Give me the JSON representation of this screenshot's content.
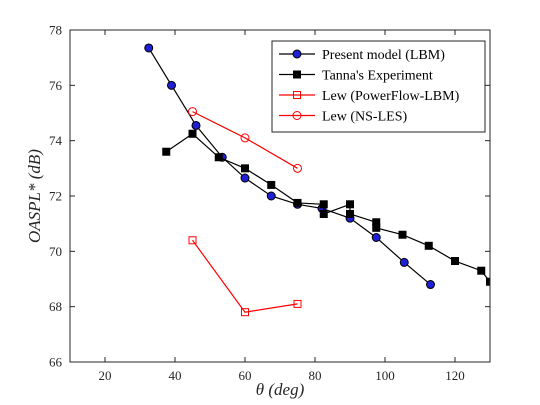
{
  "chart_data": {
    "type": "line",
    "xlabel": "θ (deg)",
    "ylabel": "OASPL* (dB)",
    "xlim": [
      10,
      130
    ],
    "ylim": [
      66,
      78
    ],
    "xticks": [
      20,
      40,
      60,
      80,
      100,
      120
    ],
    "yticks": [
      66,
      68,
      70,
      72,
      74,
      76,
      78
    ],
    "legend_position": "top-right",
    "grid": false,
    "series": [
      {
        "name": "Present model (LBM)",
        "color": "#000000",
        "marker": "circle",
        "marker_fill": "#1f1fd6",
        "x": [
          32.5,
          39,
          46,
          53.5,
          60,
          67.5,
          75,
          82,
          90,
          97.5,
          105.5,
          113
        ],
        "y": [
          77.35,
          76.0,
          74.55,
          73.4,
          72.65,
          72.0,
          71.7,
          71.55,
          71.2,
          70.5,
          69.6,
          68.8
        ]
      },
      {
        "name": "Tanna's Experiment",
        "color": "#000000",
        "marker": "square",
        "marker_fill": "#000000",
        "x": [
          37.5,
          45,
          52.5,
          60,
          67.5,
          75,
          82.5,
          82.5,
          90,
          90,
          97.5,
          97.5,
          105,
          112.5,
          120,
          127.5,
          130
        ],
        "y": [
          73.6,
          74.25,
          73.4,
          73.0,
          72.4,
          71.75,
          71.7,
          71.35,
          71.7,
          71.35,
          71.05,
          70.85,
          70.6,
          70.2,
          69.65,
          69.3,
          68.9
        ]
      },
      {
        "name": "Lew (PowerFlow-LBM)",
        "color": "#ff0000",
        "marker": "square-open",
        "marker_fill": "none",
        "x": [
          45,
          60,
          75
        ],
        "y": [
          70.4,
          67.8,
          68.1
        ]
      },
      {
        "name": "Lew (NS-LES)",
        "color": "#ff0000",
        "marker": "circle-open",
        "marker_fill": "none",
        "x": [
          45,
          60,
          75
        ],
        "y": [
          75.05,
          74.1,
          73.0
        ]
      }
    ]
  }
}
